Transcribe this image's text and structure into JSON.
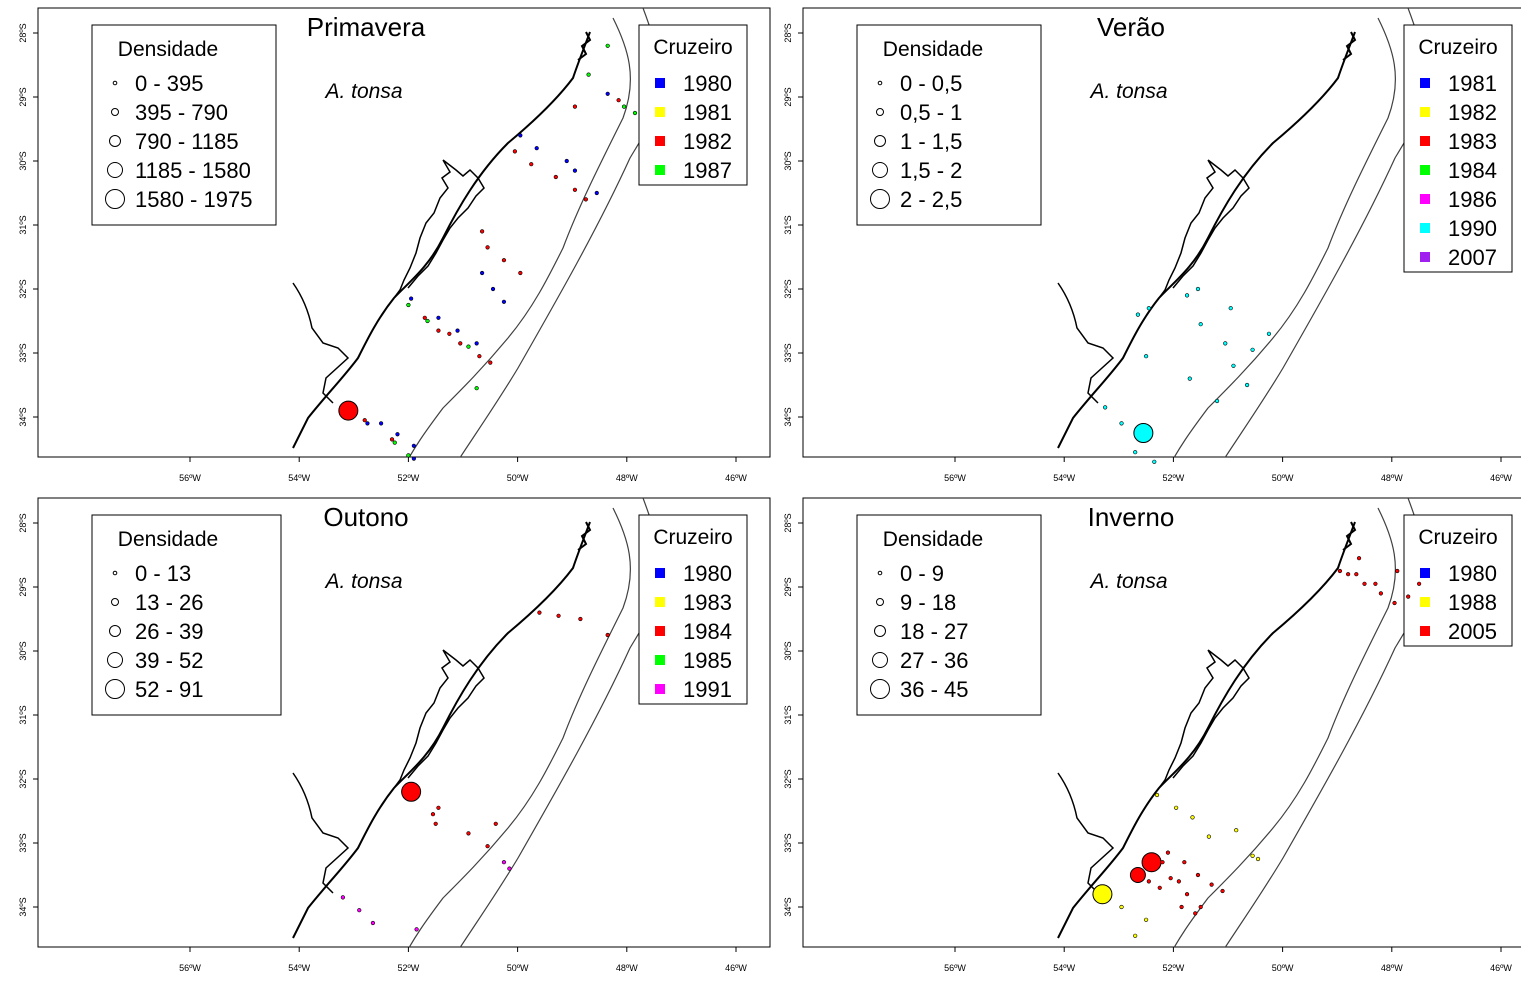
{
  "species": "A. tonsa",
  "coast_color": "#000000",
  "contour_color": "#404040",
  "legend_titles": {
    "density": "Densidade",
    "cruise": "Cruzeiro"
  },
  "x_ticks": [
    "56ºW",
    "54ºW",
    "52ºW",
    "50ºW",
    "48ºW",
    "46ºW"
  ],
  "y_ticks": [
    "28ºS",
    "29ºS",
    "30ºS",
    "31ºS",
    "32ºS",
    "33ºS",
    "34ºS"
  ],
  "panels": [
    {
      "id": "primavera",
      "title": "Primavera",
      "density_classes": [
        "0 - 395",
        "395 - 790",
        "790 - 1185",
        "1185 - 1580",
        "1580 - 1975"
      ],
      "cruises": [
        {
          "year": "1980",
          "color": "#0000ff"
        },
        {
          "year": "1981",
          "color": "#ffff00"
        },
        {
          "year": "1982",
          "color": "#ff0000"
        },
        {
          "year": "1987",
          "color": "#00ff00"
        }
      ],
      "stations": [
        {
          "lon": -53.1,
          "lat": -33.9,
          "cls": 5,
          "cruise": "1982"
        },
        {
          "lon": -52.8,
          "lat": -34.05,
          "cls": 1,
          "cruise": "1982"
        },
        {
          "lon": -52.75,
          "lat": -34.1,
          "cls": 1,
          "cruise": "1980"
        },
        {
          "lon": -52.5,
          "lat": -34.1,
          "cls": 1,
          "cruise": "1980"
        },
        {
          "lon": -52.3,
          "lat": -34.35,
          "cls": 1,
          "cruise": "1982"
        },
        {
          "lon": -52.25,
          "lat": -34.4,
          "cls": 1,
          "cruise": "1987"
        },
        {
          "lon": -52.2,
          "lat": -34.27,
          "cls": 1,
          "cruise": "1980"
        },
        {
          "lon": -52.0,
          "lat": -34.6,
          "cls": 1,
          "cruise": "1987"
        },
        {
          "lon": -51.9,
          "lat": -34.45,
          "cls": 1,
          "cruise": "1980"
        },
        {
          "lon": -51.9,
          "lat": -34.65,
          "cls": 1,
          "cruise": "1980"
        },
        {
          "lon": -51.95,
          "lat": -32.15,
          "cls": 1,
          "cruise": "1980"
        },
        {
          "lon": -52.0,
          "lat": -32.25,
          "cls": 1,
          "cruise": "1987"
        },
        {
          "lon": -51.7,
          "lat": -32.45,
          "cls": 1,
          "cruise": "1982"
        },
        {
          "lon": -51.65,
          "lat": -32.5,
          "cls": 1,
          "cruise": "1987"
        },
        {
          "lon": -51.45,
          "lat": -32.45,
          "cls": 1,
          "cruise": "1980"
        },
        {
          "lon": -51.45,
          "lat": -32.65,
          "cls": 1,
          "cruise": "1982"
        },
        {
          "lon": -51.25,
          "lat": -32.7,
          "cls": 1,
          "cruise": "1982"
        },
        {
          "lon": -51.1,
          "lat": -32.65,
          "cls": 1,
          "cruise": "1980"
        },
        {
          "lon": -51.05,
          "lat": -32.85,
          "cls": 1,
          "cruise": "1982"
        },
        {
          "lon": -50.9,
          "lat": -32.9,
          "cls": 1,
          "cruise": "1987"
        },
        {
          "lon": -50.75,
          "lat": -32.85,
          "cls": 1,
          "cruise": "1980"
        },
        {
          "lon": -50.7,
          "lat": -33.05,
          "cls": 1,
          "cruise": "1982"
        },
        {
          "lon": -50.5,
          "lat": -33.15,
          "cls": 1,
          "cruise": "1982"
        },
        {
          "lon": -50.75,
          "lat": -33.55,
          "cls": 1,
          "cruise": "1987"
        },
        {
          "lon": -50.65,
          "lat": -31.1,
          "cls": 1,
          "cruise": "1982"
        },
        {
          "lon": -50.55,
          "lat": -31.35,
          "cls": 1,
          "cruise": "1982"
        },
        {
          "lon": -50.65,
          "lat": -31.75,
          "cls": 1,
          "cruise": "1980"
        },
        {
          "lon": -50.45,
          "lat": -32.0,
          "cls": 1,
          "cruise": "1980"
        },
        {
          "lon": -50.25,
          "lat": -31.55,
          "cls": 1,
          "cruise": "1982"
        },
        {
          "lon": -50.25,
          "lat": -32.2,
          "cls": 1,
          "cruise": "1980"
        },
        {
          "lon": -49.95,
          "lat": -31.75,
          "cls": 1,
          "cruise": "1982"
        },
        {
          "lon": -49.95,
          "lat": -29.6,
          "cls": 1,
          "cruise": "1980"
        },
        {
          "lon": -50.05,
          "lat": -29.85,
          "cls": 1,
          "cruise": "1982"
        },
        {
          "lon": -49.65,
          "lat": -29.8,
          "cls": 1,
          "cruise": "1980"
        },
        {
          "lon": -49.75,
          "lat": -30.05,
          "cls": 1,
          "cruise": "1982"
        },
        {
          "lon": -49.3,
          "lat": -30.25,
          "cls": 1,
          "cruise": "1982"
        },
        {
          "lon": -49.1,
          "lat": -30.0,
          "cls": 1,
          "cruise": "1980"
        },
        {
          "lon": -48.95,
          "lat": -30.15,
          "cls": 1,
          "cruise": "1980"
        },
        {
          "lon": -48.95,
          "lat": -30.45,
          "cls": 1,
          "cruise": "1982"
        },
        {
          "lon": -48.75,
          "lat": -30.6,
          "cls": 1,
          "cruise": "1982"
        },
        {
          "lon": -48.55,
          "lat": -30.5,
          "cls": 1,
          "cruise": "1980"
        },
        {
          "lon": -48.95,
          "lat": -29.15,
          "cls": 1,
          "cruise": "1982"
        },
        {
          "lon": -48.7,
          "lat": -28.65,
          "cls": 1,
          "cruise": "1987"
        },
        {
          "lon": -48.35,
          "lat": -28.2,
          "cls": 1,
          "cruise": "1987"
        },
        {
          "lon": -48.35,
          "lat": -28.95,
          "cls": 1,
          "cruise": "1980"
        },
        {
          "lon": -48.15,
          "lat": -29.05,
          "cls": 1,
          "cruise": "1982"
        },
        {
          "lon": -48.05,
          "lat": -29.15,
          "cls": 1,
          "cruise": "1987"
        },
        {
          "lon": -47.85,
          "lat": -29.25,
          "cls": 1,
          "cruise": "1987"
        }
      ]
    },
    {
      "id": "verao",
      "title": "Verão",
      "density_classes": [
        "0 - 0,5",
        "0,5 - 1",
        "1 - 1,5",
        "1,5 - 2",
        "2 - 2,5"
      ],
      "cruises": [
        {
          "year": "1981",
          "color": "#0000ff"
        },
        {
          "year": "1982",
          "color": "#ffff00"
        },
        {
          "year": "1983",
          "color": "#ff0000"
        },
        {
          "year": "1984",
          "color": "#00ff00"
        },
        {
          "year": "1986",
          "color": "#ff00ff"
        },
        {
          "year": "1990",
          "color": "#00ffff"
        },
        {
          "year": "2007",
          "color": "#a020f0"
        }
      ],
      "stations": [
        {
          "lon": -52.55,
          "lat": -34.25,
          "cls": 5,
          "cruise": "1990"
        },
        {
          "lon": -53.25,
          "lat": -33.85,
          "cls": 1,
          "cruise": "1990"
        },
        {
          "lon": -52.95,
          "lat": -34.1,
          "cls": 1,
          "cruise": "1990"
        },
        {
          "lon": -52.7,
          "lat": -34.55,
          "cls": 1,
          "cruise": "1990"
        },
        {
          "lon": -52.35,
          "lat": -34.7,
          "cls": 1,
          "cruise": "1990"
        },
        {
          "lon": -52.5,
          "lat": -33.05,
          "cls": 1,
          "cruise": "1990"
        },
        {
          "lon": -52.65,
          "lat": -32.4,
          "cls": 1,
          "cruise": "1990"
        },
        {
          "lon": -52.45,
          "lat": -32.3,
          "cls": 1,
          "cruise": "1990"
        },
        {
          "lon": -51.75,
          "lat": -32.1,
          "cls": 1,
          "cruise": "1990"
        },
        {
          "lon": -51.55,
          "lat": -32.0,
          "cls": 1,
          "cruise": "1990"
        },
        {
          "lon": -51.5,
          "lat": -32.55,
          "cls": 1,
          "cruise": "1990"
        },
        {
          "lon": -50.95,
          "lat": -32.3,
          "cls": 1,
          "cruise": "1990"
        },
        {
          "lon": -51.05,
          "lat": -32.85,
          "cls": 1,
          "cruise": "1990"
        },
        {
          "lon": -50.55,
          "lat": -32.95,
          "cls": 1,
          "cruise": "1990"
        },
        {
          "lon": -50.25,
          "lat": -32.7,
          "cls": 1,
          "cruise": "1990"
        },
        {
          "lon": -51.7,
          "lat": -33.4,
          "cls": 1,
          "cruise": "1990"
        },
        {
          "lon": -50.9,
          "lat": -33.2,
          "cls": 1,
          "cruise": "1990"
        },
        {
          "lon": -51.2,
          "lat": -33.75,
          "cls": 1,
          "cruise": "1990"
        },
        {
          "lon": -50.65,
          "lat": -33.5,
          "cls": 1,
          "cruise": "1990"
        }
      ]
    },
    {
      "id": "outono",
      "title": "Outono",
      "density_classes": [
        "0 - 13",
        "13 - 26",
        "26 - 39",
        "39 - 52",
        "52 - 91"
      ],
      "cruises": [
        {
          "year": "1980",
          "color": "#0000ff"
        },
        {
          "year": "1983",
          "color": "#ffff00"
        },
        {
          "year": "1984",
          "color": "#ff0000"
        },
        {
          "year": "1985",
          "color": "#00ff00"
        },
        {
          "year": "1991",
          "color": "#ff00ff"
        }
      ],
      "stations": [
        {
          "lon": -51.95,
          "lat": -32.2,
          "cls": 5,
          "cruise": "1984"
        },
        {
          "lon": -51.45,
          "lat": -32.45,
          "cls": 1,
          "cruise": "1984"
        },
        {
          "lon": -51.55,
          "lat": -32.55,
          "cls": 1,
          "cruise": "1984"
        },
        {
          "lon": -51.5,
          "lat": -32.7,
          "cls": 1,
          "cruise": "1984"
        },
        {
          "lon": -50.9,
          "lat": -32.85,
          "cls": 1,
          "cruise": "1984"
        },
        {
          "lon": -50.4,
          "lat": -32.7,
          "cls": 1,
          "cruise": "1984"
        },
        {
          "lon": -50.55,
          "lat": -33.05,
          "cls": 1,
          "cruise": "1984"
        },
        {
          "lon": -50.25,
          "lat": -33.3,
          "cls": 1,
          "cruise": "1991"
        },
        {
          "lon": -50.15,
          "lat": -33.4,
          "cls": 1,
          "cruise": "1991"
        },
        {
          "lon": -49.6,
          "lat": -29.4,
          "cls": 1,
          "cruise": "1984"
        },
        {
          "lon": -49.25,
          "lat": -29.45,
          "cls": 1,
          "cruise": "1984"
        },
        {
          "lon": -48.85,
          "lat": -29.5,
          "cls": 1,
          "cruise": "1984"
        },
        {
          "lon": -48.35,
          "lat": -29.75,
          "cls": 1,
          "cruise": "1984"
        },
        {
          "lon": -53.2,
          "lat": -33.85,
          "cls": 1,
          "cruise": "1991"
        },
        {
          "lon": -52.9,
          "lat": -34.05,
          "cls": 1,
          "cruise": "1991"
        },
        {
          "lon": -52.65,
          "lat": -34.25,
          "cls": 1,
          "cruise": "1991"
        },
        {
          "lon": -51.85,
          "lat": -34.35,
          "cls": 1,
          "cruise": "1991"
        }
      ]
    },
    {
      "id": "inverno",
      "title": "Inverno",
      "density_classes": [
        "0 - 9",
        "9 - 18",
        "18 - 27",
        "27 - 36",
        "36 - 45"
      ],
      "cruises": [
        {
          "year": "1980",
          "color": "#0000ff"
        },
        {
          "year": "1988",
          "color": "#ffff00"
        },
        {
          "year": "2005",
          "color": "#ff0000"
        }
      ],
      "stations": [
        {
          "lon": -53.3,
          "lat": -33.8,
          "cls": 5,
          "cruise": "1988"
        },
        {
          "lon": -52.4,
          "lat": -33.3,
          "cls": 5,
          "cruise": "2005"
        },
        {
          "lon": -52.65,
          "lat": -33.5,
          "cls": 4,
          "cruise": "2005"
        },
        {
          "lon": -52.95,
          "lat": -34.0,
          "cls": 1,
          "cruise": "1988"
        },
        {
          "lon": -52.5,
          "lat": -34.2,
          "cls": 1,
          "cruise": "1988"
        },
        {
          "lon": -52.7,
          "lat": -34.45,
          "cls": 1,
          "cruise": "1988"
        },
        {
          "lon": -52.45,
          "lat": -33.6,
          "cls": 1,
          "cruise": "2005"
        },
        {
          "lon": -52.25,
          "lat": -33.7,
          "cls": 1,
          "cruise": "2005"
        },
        {
          "lon": -52.05,
          "lat": -33.55,
          "cls": 1,
          "cruise": "2005"
        },
        {
          "lon": -52.2,
          "lat": -33.3,
          "cls": 1,
          "cruise": "2005"
        },
        {
          "lon": -52.1,
          "lat": -33.15,
          "cls": 1,
          "cruise": "2005"
        },
        {
          "lon": -51.8,
          "lat": -33.3,
          "cls": 1,
          "cruise": "2005"
        },
        {
          "lon": -51.9,
          "lat": -33.6,
          "cls": 1,
          "cruise": "2005"
        },
        {
          "lon": -51.75,
          "lat": -33.8,
          "cls": 1,
          "cruise": "2005"
        },
        {
          "lon": -51.85,
          "lat": -34.0,
          "cls": 1,
          "cruise": "2005"
        },
        {
          "lon": -51.5,
          "lat": -34.0,
          "cls": 1,
          "cruise": "2005"
        },
        {
          "lon": -51.3,
          "lat": -33.65,
          "cls": 1,
          "cruise": "2005"
        },
        {
          "lon": -51.1,
          "lat": -33.75,
          "cls": 1,
          "cruise": "2005"
        },
        {
          "lon": -51.55,
          "lat": -33.5,
          "cls": 1,
          "cruise": "2005"
        },
        {
          "lon": -51.6,
          "lat": -34.1,
          "cls": 1,
          "cruise": "2005"
        },
        {
          "lon": -52.3,
          "lat": -32.25,
          "cls": 1,
          "cruise": "1988"
        },
        {
          "lon": -51.95,
          "lat": -32.45,
          "cls": 1,
          "cruise": "1988"
        },
        {
          "lon": -51.65,
          "lat": -32.6,
          "cls": 1,
          "cruise": "1988"
        },
        {
          "lon": -51.35,
          "lat": -32.9,
          "cls": 1,
          "cruise": "1988"
        },
        {
          "lon": -50.85,
          "lat": -32.8,
          "cls": 1,
          "cruise": "1988"
        },
        {
          "lon": -50.55,
          "lat": -33.2,
          "cls": 1,
          "cruise": "1988"
        },
        {
          "lon": -50.45,
          "lat": -33.25,
          "cls": 1,
          "cruise": "1988"
        },
        {
          "lon": -48.95,
          "lat": -28.75,
          "cls": 1,
          "cruise": "2005"
        },
        {
          "lon": -48.8,
          "lat": -28.8,
          "cls": 1,
          "cruise": "2005"
        },
        {
          "lon": -48.65,
          "lat": -28.8,
          "cls": 1,
          "cruise": "2005"
        },
        {
          "lon": -48.6,
          "lat": -28.55,
          "cls": 1,
          "cruise": "2005"
        },
        {
          "lon": -48.5,
          "lat": -28.95,
          "cls": 1,
          "cruise": "2005"
        },
        {
          "lon": -48.3,
          "lat": -28.95,
          "cls": 1,
          "cruise": "2005"
        },
        {
          "lon": -48.2,
          "lat": -29.1,
          "cls": 1,
          "cruise": "2005"
        },
        {
          "lon": -47.9,
          "lat": -28.75,
          "cls": 1,
          "cruise": "2005"
        },
        {
          "lon": -47.95,
          "lat": -29.25,
          "cls": 1,
          "cruise": "2005"
        },
        {
          "lon": -47.7,
          "lat": -29.15,
          "cls": 1,
          "cruise": "2005"
        },
        {
          "lon": -47.5,
          "lat": -28.95,
          "cls": 1,
          "cruise": "2005"
        }
      ]
    }
  ]
}
